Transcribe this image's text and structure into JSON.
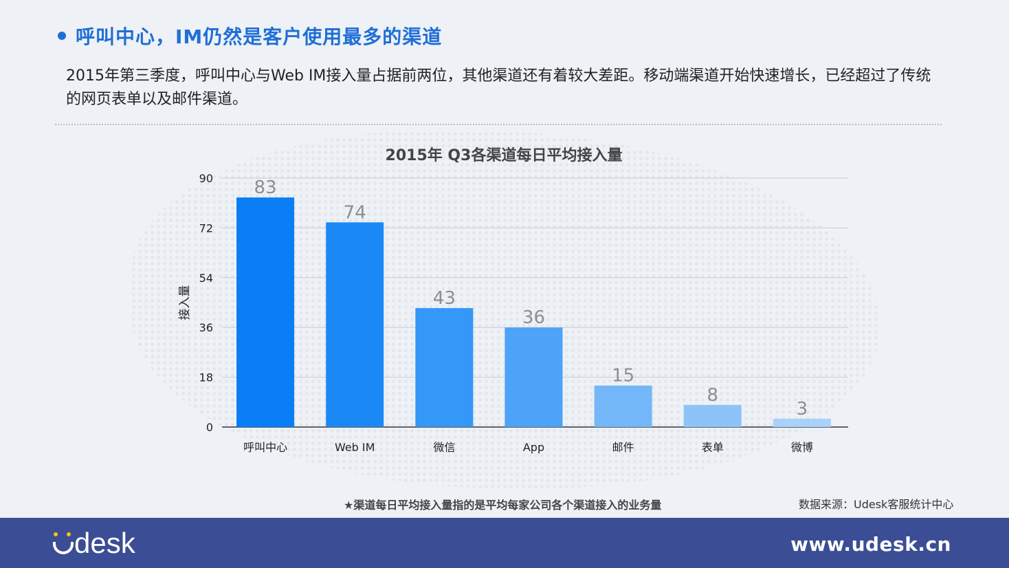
{
  "slide": {
    "title": "呼叫中心，IM仍然是客户使用最多的渠道",
    "description": "2015年第三季度，呼叫中心与Web IM接入量占据前两位，其他渠道还有着较大差距。移动端渠道开始快速增长，已经超过了传统的网页表单以及邮件渠道。",
    "footnote": "★渠道每日平均接入量指的是平均每家公司各个渠道接入的业务量",
    "source": "数据来源：Udesk客服统计中心"
  },
  "footer": {
    "logo_text": "desk",
    "website": "www.udesk.cn"
  },
  "chart_data": {
    "type": "bar",
    "title": "2015年 Q3各渠道每日平均接入量",
    "ylabel": "接入量",
    "xlabel": "",
    "categories": [
      "呼叫中心",
      "Web IM",
      "微信",
      "App",
      "邮件",
      "表单",
      "微博"
    ],
    "values": [
      83,
      74,
      43,
      36,
      15,
      8,
      3
    ],
    "ylim": [
      0,
      90
    ],
    "yticks": [
      0,
      18,
      36,
      54,
      72,
      90
    ],
    "grid": true,
    "data_labels": true,
    "colors": [
      "#0a7ef5",
      "#1a89f5",
      "#3597f7",
      "#4ca3f7",
      "#74b7f8",
      "#8dc4f8",
      "#a8d2f9"
    ]
  }
}
